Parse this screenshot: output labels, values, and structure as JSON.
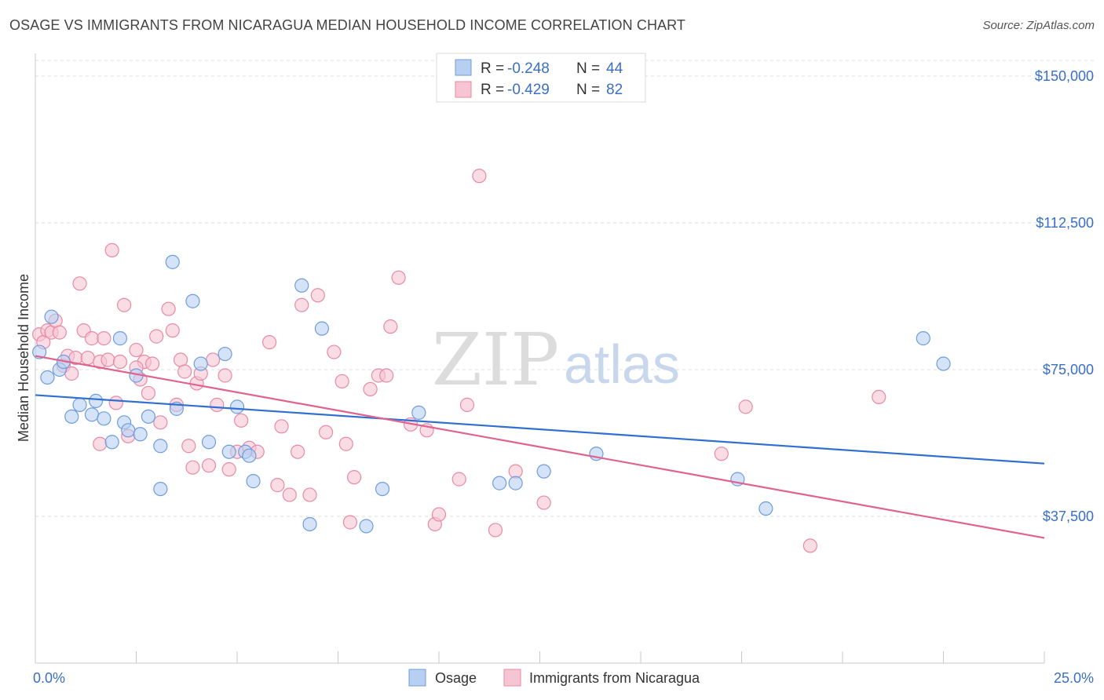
{
  "header": {
    "title": "OSAGE VS IMMIGRANTS FROM NICARAGUA MEDIAN HOUSEHOLD INCOME CORRELATION CHART",
    "source": "Source: ZipAtlas.com"
  },
  "watermark": {
    "zip": "ZIP",
    "atlas": "atlas"
  },
  "colors": {
    "osage_fill": "#b7d0f2",
    "osage_stroke": "#6f9ddc",
    "osage_line": "#2f6fcf",
    "nica_fill": "#f7c4d3",
    "nica_stroke": "#e88aa6",
    "nica_line": "#e0628f",
    "grid": "#dddddd",
    "axis_label": "#3a6fc4"
  },
  "legend": {
    "rows": [
      {
        "r_label": "R =",
        "r_value": "-0.248",
        "n_label": "N =",
        "n_value": "44"
      },
      {
        "r_label": "R =",
        "r_value": "-0.429",
        "n_label": "N =",
        "n_value": "82"
      }
    ]
  },
  "bottom_legend": {
    "series1": "Osage",
    "series2": "Immigrants from Nicaragua"
  },
  "chart_data": {
    "type": "scatter",
    "title": "OSAGE VS IMMIGRANTS FROM NICARAGUA MEDIAN HOUSEHOLD INCOME CORRELATION CHART",
    "xlabel": "",
    "ylabel": "Median Household Income",
    "xlim": [
      0,
      25
    ],
    "ylim": [
      0,
      155000
    ],
    "x_tick_labels": [
      "0.0%",
      "25.0%"
    ],
    "y_ticks": [
      37500,
      75000,
      112500,
      150000
    ],
    "y_tick_labels": [
      "$37,500",
      "$75,000",
      "$112,500",
      "$150,000"
    ],
    "grid": true,
    "legend_position": "top-center",
    "series": [
      {
        "name": "Osage",
        "r": -0.248,
        "n": 44,
        "trend": {
          "x": [
            0,
            25
          ],
          "y": [
            68500,
            51000
          ]
        },
        "points": [
          [
            0.1,
            79500
          ],
          [
            0.4,
            88500
          ],
          [
            0.3,
            73000
          ],
          [
            0.6,
            75000
          ],
          [
            0.7,
            77000
          ],
          [
            0.9,
            63000
          ],
          [
            1.1,
            66000
          ],
          [
            1.4,
            63500
          ],
          [
            1.5,
            67000
          ],
          [
            1.7,
            62500
          ],
          [
            1.9,
            56500
          ],
          [
            2.1,
            83000
          ],
          [
            2.2,
            61500
          ],
          [
            2.3,
            59500
          ],
          [
            2.5,
            73500
          ],
          [
            2.6,
            58500
          ],
          [
            2.8,
            63000
          ],
          [
            3.1,
            55500
          ],
          [
            3.1,
            44500
          ],
          [
            3.4,
            102500
          ],
          [
            3.5,
            65000
          ],
          [
            3.9,
            92500
          ],
          [
            4.1,
            76500
          ],
          [
            4.3,
            56500
          ],
          [
            4.7,
            79000
          ],
          [
            4.8,
            54000
          ],
          [
            5.0,
            65500
          ],
          [
            5.2,
            54000
          ],
          [
            5.3,
            53000
          ],
          [
            5.4,
            46500
          ],
          [
            6.6,
            96500
          ],
          [
            6.8,
            35500
          ],
          [
            7.1,
            85500
          ],
          [
            8.2,
            35000
          ],
          [
            8.6,
            44500
          ],
          [
            9.5,
            64000
          ],
          [
            11.5,
            46000
          ],
          [
            11.9,
            46000
          ],
          [
            12.6,
            49000
          ],
          [
            13.9,
            53500
          ],
          [
            17.4,
            47000
          ],
          [
            18.1,
            39500
          ],
          [
            22.0,
            83000
          ],
          [
            22.5,
            76500
          ]
        ]
      },
      {
        "name": "Immigrants from Nicaragua",
        "r": -0.429,
        "n": 82,
        "trend": {
          "x": [
            0,
            25
          ],
          "y": [
            78500,
            32000
          ]
        },
        "points": [
          [
            0.1,
            84000
          ],
          [
            0.2,
            82000
          ],
          [
            0.3,
            85000
          ],
          [
            0.4,
            84500
          ],
          [
            0.5,
            87500
          ],
          [
            0.6,
            84500
          ],
          [
            0.7,
            76000
          ],
          [
            0.8,
            78500
          ],
          [
            0.9,
            74000
          ],
          [
            1.0,
            78000
          ],
          [
            1.1,
            97000
          ],
          [
            1.2,
            85000
          ],
          [
            1.3,
            78000
          ],
          [
            1.4,
            83000
          ],
          [
            1.6,
            77000
          ],
          [
            1.7,
            83000
          ],
          [
            1.8,
            77500
          ],
          [
            1.9,
            105500
          ],
          [
            2.0,
            66500
          ],
          [
            2.1,
            77000
          ],
          [
            2.2,
            91500
          ],
          [
            2.3,
            58000
          ],
          [
            2.5,
            80000
          ],
          [
            2.6,
            72500
          ],
          [
            2.7,
            77000
          ],
          [
            2.8,
            69000
          ],
          [
            2.9,
            76500
          ],
          [
            3.0,
            83500
          ],
          [
            3.1,
            61500
          ],
          [
            3.3,
            90500
          ],
          [
            3.4,
            85000
          ],
          [
            3.5,
            66000
          ],
          [
            3.6,
            77500
          ],
          [
            3.7,
            74500
          ],
          [
            3.8,
            55500
          ],
          [
            3.9,
            50000
          ],
          [
            4.0,
            71500
          ],
          [
            4.1,
            74000
          ],
          [
            4.3,
            50500
          ],
          [
            4.4,
            77500
          ],
          [
            4.5,
            66000
          ],
          [
            4.7,
            73500
          ],
          [
            4.8,
            49500
          ],
          [
            5.0,
            54000
          ],
          [
            5.1,
            62000
          ],
          [
            5.3,
            55000
          ],
          [
            5.5,
            54000
          ],
          [
            5.8,
            82000
          ],
          [
            6.0,
            45500
          ],
          [
            6.1,
            60500
          ],
          [
            6.3,
            43000
          ],
          [
            6.5,
            54000
          ],
          [
            6.6,
            91500
          ],
          [
            6.8,
            43000
          ],
          [
            7.0,
            94000
          ],
          [
            7.2,
            59000
          ],
          [
            7.4,
            79500
          ],
          [
            7.6,
            72000
          ],
          [
            7.7,
            56000
          ],
          [
            7.8,
            36000
          ],
          [
            7.9,
            47500
          ],
          [
            8.3,
            70000
          ],
          [
            8.5,
            73500
          ],
          [
            8.7,
            73500
          ],
          [
            8.8,
            86000
          ],
          [
            9.0,
            98500
          ],
          [
            9.3,
            61000
          ],
          [
            9.7,
            59500
          ],
          [
            9.9,
            35500
          ],
          [
            10.0,
            38000
          ],
          [
            10.5,
            47000
          ],
          [
            10.7,
            66000
          ],
          [
            11.0,
            124500
          ],
          [
            11.4,
            34000
          ],
          [
            11.9,
            49000
          ],
          [
            12.6,
            41000
          ],
          [
            17.0,
            53500
          ],
          [
            17.6,
            65500
          ],
          [
            19.2,
            30000
          ],
          [
            20.9,
            68000
          ],
          [
            1.6,
            56000
          ],
          [
            2.5,
            75500
          ]
        ]
      }
    ]
  }
}
